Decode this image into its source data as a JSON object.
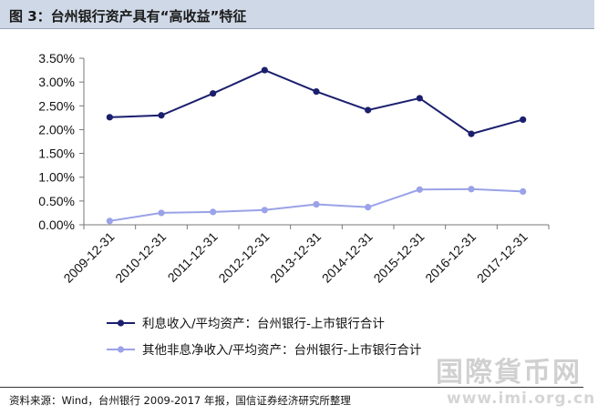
{
  "figure": {
    "title": "图 3：台州银行资产具有“高收益”特征",
    "source": "资料来源：Wind，台州银行 2009-2017 年报，国信证券经济研究所整理",
    "watermark": "国際貨币网",
    "watermark_url": "www.imi.org.cn"
  },
  "chart_data": {
    "type": "line",
    "title": "",
    "xlabel": "",
    "ylabel": "",
    "categories": [
      "2009-12-31",
      "2010-12-31",
      "2011-12-31",
      "2012-12-31",
      "2013-12-31",
      "2014-12-31",
      "2015-12-31",
      "2016-12-31",
      "2017-12-31"
    ],
    "ylim": [
      0,
      3.5
    ],
    "yticks": [
      0,
      0.5,
      1.0,
      1.5,
      2.0,
      2.5,
      3.0,
      3.5
    ],
    "ytick_labels": [
      "0.00%",
      "0.50%",
      "1.00%",
      "1.50%",
      "2.00%",
      "2.50%",
      "3.00%",
      "3.50%"
    ],
    "grid": false,
    "legend_position": "bottom",
    "series": [
      {
        "name": "利息收入/平均资产：台州银行-上市银行合计",
        "color": "#1b1f6e",
        "values": [
          2.26,
          2.3,
          2.76,
          3.25,
          2.8,
          2.41,
          2.66,
          1.91,
          2.21
        ]
      },
      {
        "name": "其他非息净收入/平均资产：台州银行-上市银行合计",
        "color": "#9aa2e8",
        "values": [
          0.08,
          0.25,
          0.27,
          0.31,
          0.43,
          0.37,
          0.74,
          0.75,
          0.7
        ]
      }
    ]
  }
}
